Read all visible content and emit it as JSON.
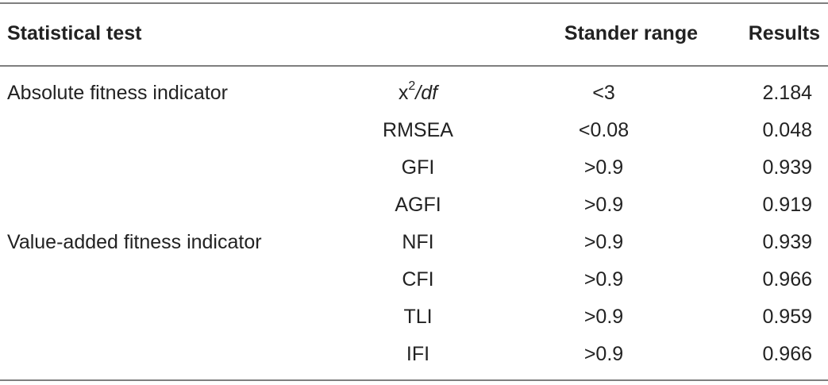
{
  "table": {
    "headers": {
      "test": "Statistical test",
      "indicator": "",
      "range": "Stander range",
      "results": "Results"
    },
    "rows": [
      {
        "test": "Absolute fitness indicator",
        "indicator_base": "x",
        "indicator_sup": "2",
        "indicator_rest": "/df",
        "range": "<3",
        "result": "2.184"
      },
      {
        "test": "",
        "indicator": "RMSEA",
        "range": "<0.08",
        "result": "0.048"
      },
      {
        "test": "",
        "indicator": "GFI",
        "range": ">0.9",
        "result": "0.939"
      },
      {
        "test": "",
        "indicator": "AGFI",
        "range": ">0.9",
        "result": "0.919"
      },
      {
        "test": "Value-added fitness indicator",
        "indicator": "NFI",
        "range": ">0.9",
        "result": "0.939"
      },
      {
        "test": "",
        "indicator": "CFI",
        "range": ">0.9",
        "result": "0.966"
      },
      {
        "test": "",
        "indicator": "TLI",
        "range": ">0.9",
        "result": "0.959"
      },
      {
        "test": "",
        "indicator": "IFI",
        "range": ">0.9",
        "result": "0.966"
      }
    ]
  }
}
